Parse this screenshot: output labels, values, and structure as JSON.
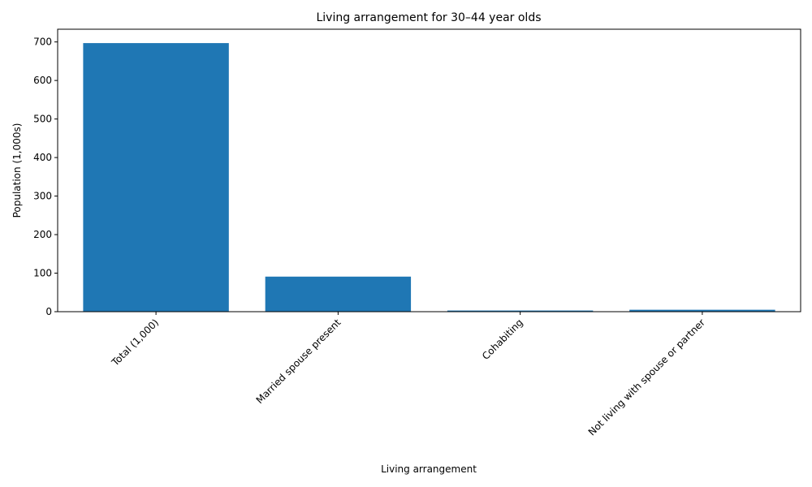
{
  "chart_data": {
    "type": "bar",
    "title": "Living arrangement for 30–44 year olds",
    "xlabel": "Living arrangement",
    "ylabel": "Population (1,000s)",
    "categories": [
      "Total (1,000)",
      "Married spouse present",
      "Cohabiting",
      "Not living with spouse or partner"
    ],
    "values": [
      697,
      91,
      3,
      5
    ],
    "ylim": [
      0,
      733
    ],
    "yticks": [
      0,
      100,
      200,
      300,
      400,
      500,
      600,
      700
    ],
    "bar_color": "#1f77b4",
    "grid": false,
    "legend": "none"
  }
}
